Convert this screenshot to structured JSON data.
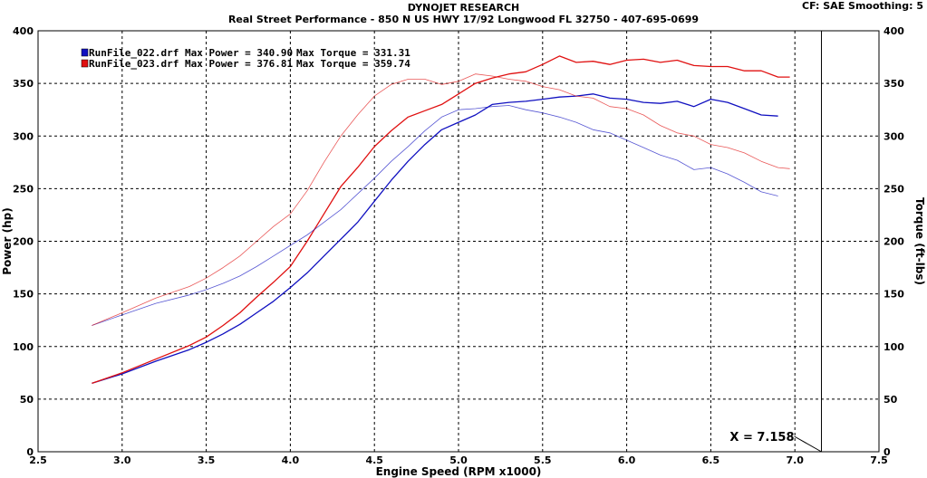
{
  "header": {
    "title": "DYNOJET RESEARCH",
    "subtitle": "Real Street Performance - 850 N US HWY 17/92 Longwood FL 32750 - 407-695-0699",
    "corner": "CF: SAE  Smoothing: 5"
  },
  "cursor": {
    "label": "X = 7.158",
    "x": 7.158
  },
  "chart_data": {
    "type": "line",
    "xlabel": "Engine Speed (RPM x1000)",
    "ylabel": "Power (hp)",
    "y2label": "Torque (ft-lbs)",
    "xlim": [
      2.5,
      7.5
    ],
    "ylim": [
      0,
      400
    ],
    "y2lim": [
      0,
      400
    ],
    "xticks": [
      "2.5",
      "3.0",
      "3.5",
      "4.0",
      "4.5",
      "5.0",
      "5.5",
      "6.0",
      "6.5",
      "7.0",
      "7.5"
    ],
    "yticks": [
      "0",
      "50",
      "100",
      "150",
      "200",
      "250",
      "300",
      "350",
      "400"
    ],
    "grid": true,
    "legend_position": "top-left",
    "legend": [
      {
        "run": "RunFile_022.drf",
        "text": "RunFile_022.drf Max Power = 340.90",
        "torque_text": "Max Torque = 331.31",
        "color": "#1010c0"
      },
      {
        "run": "RunFile_023.drf",
        "text": "RunFile_023.drf Max Power = 376.81",
        "torque_text": "Max Torque = 359.74",
        "color": "#e01010"
      }
    ],
    "series": [
      {
        "name": "RunFile_022.drf Power",
        "color": "#1010c0",
        "weight": "heavy",
        "x": [
          2.82,
          3.0,
          3.2,
          3.4,
          3.5,
          3.6,
          3.7,
          3.8,
          3.9,
          4.0,
          4.1,
          4.2,
          4.3,
          4.4,
          4.5,
          4.6,
          4.7,
          4.8,
          4.9,
          5.0,
          5.1,
          5.2,
          5.3,
          5.4,
          5.5,
          5.6,
          5.7,
          5.8,
          5.9,
          6.0,
          6.1,
          6.2,
          6.3,
          6.4,
          6.5,
          6.6,
          6.7,
          6.8,
          6.9
        ],
        "y": [
          65,
          74,
          86,
          97,
          104,
          112,
          121,
          132,
          143,
          156,
          170,
          186,
          202,
          218,
          238,
          258,
          276,
          292,
          306,
          313,
          320,
          330,
          332,
          333,
          335,
          337,
          338,
          340,
          336,
          335,
          332,
          331,
          333,
          328,
          335,
          332,
          326,
          320,
          319
        ]
      },
      {
        "name": "RunFile_023.drf Power",
        "color": "#e01010",
        "weight": "heavy",
        "x": [
          2.82,
          3.0,
          3.2,
          3.4,
          3.5,
          3.6,
          3.7,
          3.8,
          3.9,
          4.0,
          4.1,
          4.2,
          4.3,
          4.4,
          4.5,
          4.6,
          4.7,
          4.8,
          4.9,
          5.0,
          5.1,
          5.2,
          5.3,
          5.4,
          5.5,
          5.6,
          5.7,
          5.8,
          5.9,
          6.0,
          6.1,
          6.2,
          6.3,
          6.4,
          6.5,
          6.6,
          6.7,
          6.8,
          6.9,
          6.97
        ],
        "y": [
          65,
          75,
          88,
          101,
          109,
          120,
          132,
          147,
          161,
          176,
          200,
          226,
          252,
          270,
          290,
          305,
          318,
          324,
          330,
          340,
          350,
          355,
          359,
          361,
          368,
          376,
          370,
          371,
          368,
          372,
          373,
          370,
          372,
          367,
          366,
          366,
          362,
          362,
          356,
          356
        ]
      },
      {
        "name": "RunFile_022.drf Torque",
        "color": "#1010c0",
        "weight": "light",
        "x": [
          2.82,
          3.0,
          3.2,
          3.4,
          3.5,
          3.6,
          3.7,
          3.8,
          3.9,
          4.0,
          4.1,
          4.2,
          4.3,
          4.4,
          4.5,
          4.6,
          4.7,
          4.8,
          4.9,
          5.0,
          5.1,
          5.2,
          5.3,
          5.4,
          5.5,
          5.6,
          5.7,
          5.8,
          5.9,
          6.0,
          6.1,
          6.2,
          6.3,
          6.4,
          6.5,
          6.6,
          6.7,
          6.8,
          6.9
        ],
        "y": [
          120,
          130,
          141,
          149,
          154,
          160,
          167,
          176,
          186,
          196,
          206,
          218,
          230,
          245,
          260,
          276,
          290,
          305,
          318,
          325,
          326,
          328,
          329,
          325,
          322,
          318,
          313,
          306,
          303,
          296,
          289,
          282,
          277,
          268,
          270,
          264,
          256,
          247,
          243
        ]
      },
      {
        "name": "RunFile_023.drf Torque",
        "color": "#e01010",
        "weight": "light",
        "x": [
          2.82,
          3.0,
          3.2,
          3.4,
          3.5,
          3.6,
          3.7,
          3.8,
          3.9,
          4.0,
          4.1,
          4.2,
          4.3,
          4.4,
          4.5,
          4.6,
          4.7,
          4.8,
          4.9,
          5.0,
          5.1,
          5.2,
          5.3,
          5.4,
          5.5,
          5.6,
          5.7,
          5.8,
          5.9,
          6.0,
          6.1,
          6.2,
          6.3,
          6.4,
          6.5,
          6.6,
          6.7,
          6.8,
          6.9,
          6.97
        ],
        "y": [
          120,
          132,
          146,
          157,
          165,
          175,
          186,
          200,
          214,
          226,
          248,
          275,
          300,
          320,
          338,
          349,
          354,
          354,
          349,
          352,
          359,
          357,
          354,
          352,
          347,
          344,
          338,
          336,
          328,
          326,
          320,
          310,
          303,
          300,
          292,
          289,
          284,
          276,
          270,
          269
        ]
      }
    ]
  }
}
